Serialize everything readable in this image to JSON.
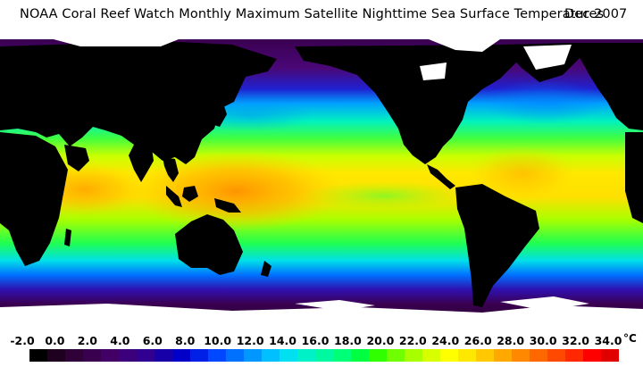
{
  "header": {
    "title": "NOAA Coral Reef Watch Monthly Maximum Satellite Nighttime Sea Surface Temperatures",
    "date": "Dec 2007"
  },
  "colorbar": {
    "tick_labels": [
      "-2.0",
      "0.0",
      "2.0",
      "4.0",
      "6.0",
      "8.0",
      "10.0",
      "12.0",
      "14.0",
      "16.0",
      "18.0",
      "20.0",
      "22.0",
      "24.0",
      "26.0",
      "28.0",
      "30.0",
      "32.0",
      "34.0"
    ],
    "unit": "°C",
    "colors": [
      "#000000",
      "#200020",
      "#300038",
      "#3a0050",
      "#420066",
      "#3c007c",
      "#300090",
      "#1800a8",
      "#0000c8",
      "#0020e8",
      "#0048ff",
      "#0070ff",
      "#0098ff",
      "#00c0ff",
      "#00e0f0",
      "#00f0c8",
      "#00f8a0",
      "#00ff78",
      "#00ff40",
      "#30ff00",
      "#70ff00",
      "#a8ff00",
      "#d8ff00",
      "#ffff00",
      "#ffe800",
      "#ffc800",
      "#ffa800",
      "#ff8800",
      "#ff6800",
      "#ff4800",
      "#ff2800",
      "#ff0000",
      "#e00000"
    ]
  },
  "map": {
    "land_color": "#000000",
    "ice_color": "#ffffff",
    "projection": "equirectangular",
    "center_longitude": "180"
  }
}
